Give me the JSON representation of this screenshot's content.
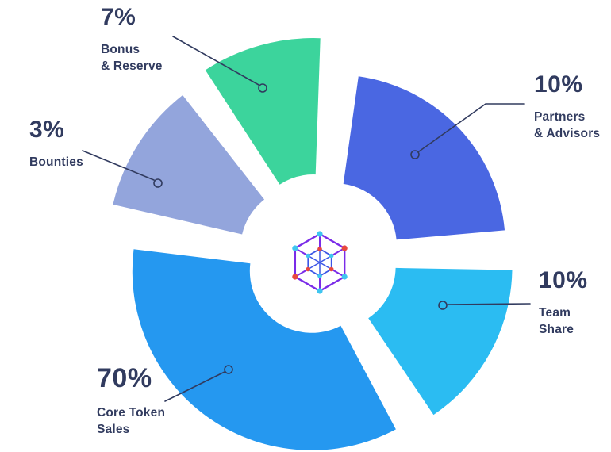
{
  "chart_data": {
    "type": "pie",
    "style": "exploded-donut",
    "label_position": "outside-callouts",
    "text_color": "#313B5F",
    "background": "#FFFFFF",
    "slices": [
      {
        "id": "bonus",
        "label": "Bonus & Reserve",
        "percent": "7%",
        "value": 7,
        "color": "#3CD49C"
      },
      {
        "id": "partners",
        "label": "Partners & Advisors",
        "percent": "10%",
        "value": 10,
        "color": "#4A67E2"
      },
      {
        "id": "team",
        "label": "Team Share",
        "percent": "10%",
        "value": 10,
        "color": "#2BBCF2"
      },
      {
        "id": "core",
        "label": "Core Token Sales",
        "percent": "70%",
        "value": 70,
        "color": "#2598F0"
      },
      {
        "id": "bounties",
        "label": "Bounties",
        "percent": "3%",
        "value": 3,
        "color": "#93A5DC"
      }
    ]
  },
  "labels": {
    "bonus": {
      "percent": "7%",
      "name": "Bonus\n& Reserve"
    },
    "partners": {
      "percent": "10%",
      "name": "Partners\n& Advisors"
    },
    "team": {
      "percent": "10%",
      "name": "Team\nShare"
    },
    "core": {
      "percent": "70%",
      "name": "Core Token\nSales"
    },
    "bounties": {
      "percent": "3%",
      "name": "Bounties"
    }
  },
  "logo": {
    "icon": "hexagon-network-logo",
    "primary_color": "#7A2BE8",
    "secondary_color": "#3B55E6",
    "node_colors": [
      "#3FC6F0",
      "#E8483F"
    ]
  }
}
